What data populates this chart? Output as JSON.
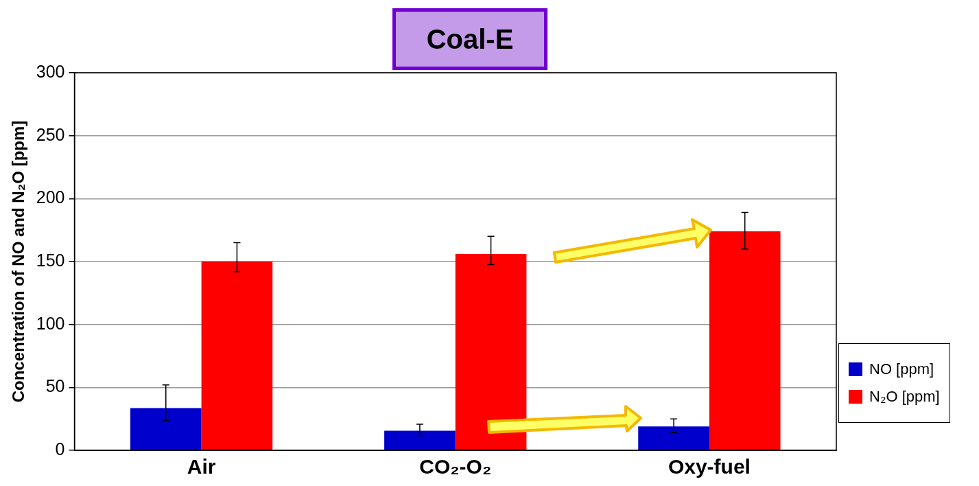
{
  "chart_data": {
    "type": "bar",
    "title": "Coal-E",
    "ylabel": "Concentration of NO and N₂O [ppm]",
    "categories": [
      "Air",
      "CO₂-O₂",
      "Oxy-fuel"
    ],
    "series": [
      {
        "name": "NO [ppm]",
        "color": "#0000cc",
        "values": [
          33.5,
          15.6,
          19
        ],
        "errors": [
          [
            23.5,
            52
          ],
          [
            11.7,
            20.7
          ],
          [
            14,
            25
          ]
        ]
      },
      {
        "name": "N₂O [ppm]",
        "color": "#ff0000",
        "values": [
          150,
          156,
          174
        ],
        "errors": [
          [
            142,
            165
          ],
          [
            147.5,
            170
          ],
          [
            160,
            189
          ]
        ]
      }
    ],
    "ylim": [
      0,
      300
    ],
    "yticks": [
      0,
      50,
      100,
      150,
      200,
      250,
      300
    ],
    "grid": "y",
    "legend": "bottom right"
  }
}
